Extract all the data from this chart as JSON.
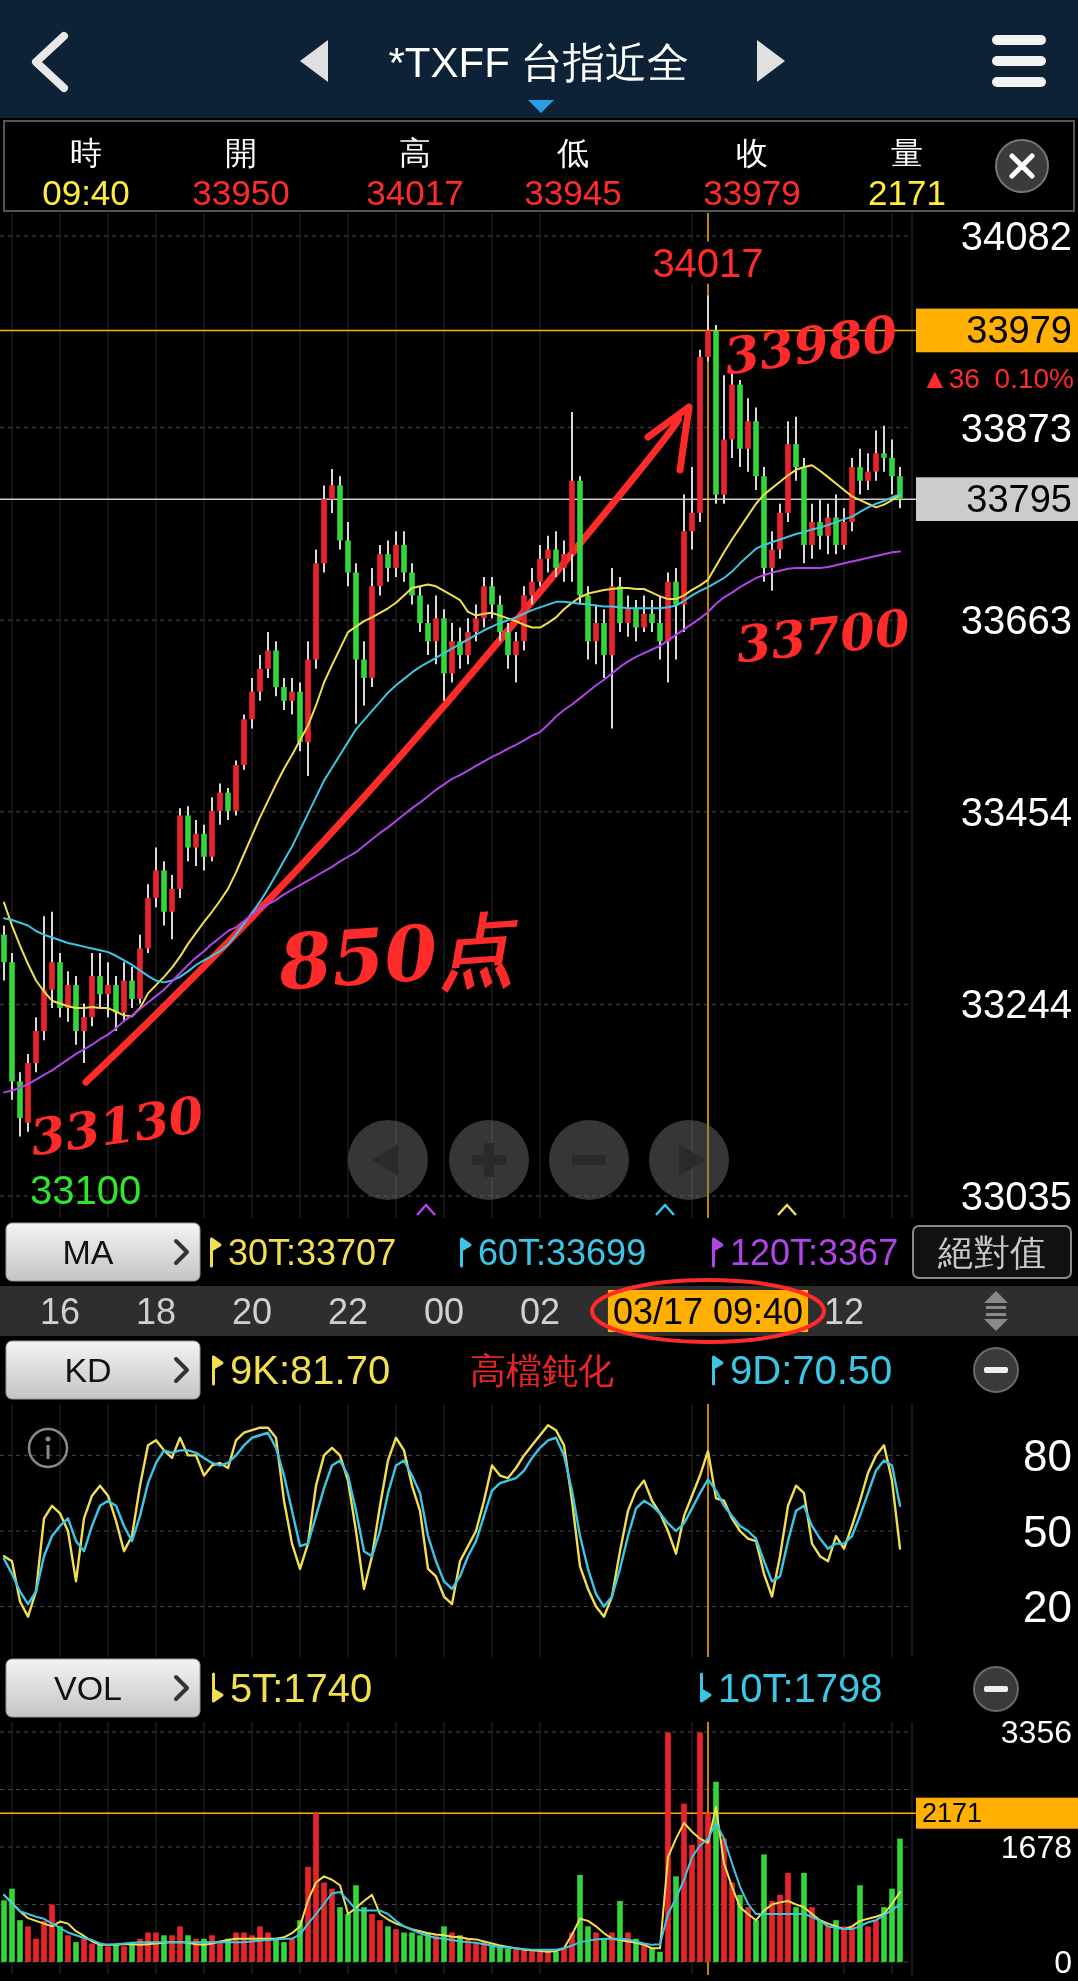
{
  "chart_data": [
    {
      "type": "other",
      "title": "*TXFF 台指近全",
      "annotations": [
        "時",
        "開",
        "高",
        "低",
        "收",
        "量",
        "09:40",
        "33950",
        "34017",
        "33945",
        "33979",
        "2171"
      ]
    },
    {
      "type": "candlestick",
      "categories": [
        null,
        null,
        null,
        null,
        null,
        null,
        null,
        "16",
        null,
        null,
        null,
        null,
        null,
        null,
        null,
        null,
        null,
        null,
        null,
        "18",
        null,
        null,
        null,
        null,
        null,
        null,
        null,
        null,
        null,
        null,
        null,
        "20",
        null,
        null,
        null,
        null,
        null,
        null,
        null,
        null,
        null,
        null,
        null,
        "22",
        null,
        null,
        null,
        null,
        null,
        null,
        null,
        null,
        null,
        null,
        null,
        "00",
        null,
        null,
        null,
        null,
        null,
        null,
        null,
        null,
        null,
        null,
        null,
        "02",
        null,
        null,
        null,
        null,
        null,
        null,
        null,
        null,
        null,
        null,
        null,
        null,
        null,
        null,
        null,
        null,
        null,
        null,
        null,
        null,
        "03/17 09:40",
        null,
        null,
        null,
        null,
        null,
        null,
        null,
        null,
        null,
        null,
        null,
        null,
        null,
        null,
        null,
        null,
        "12",
        null,
        null,
        null,
        null,
        null,
        null,
        null
      ],
      "ohlc": [
        [
          33320,
          33330,
          33270,
          33290
        ],
        [
          33290,
          33300,
          33140,
          33160
        ],
        [
          33160,
          33170,
          33100,
          33120
        ],
        [
          33115,
          33190,
          33105,
          33180
        ],
        [
          33180,
          33230,
          33170,
          33215
        ],
        [
          33215,
          33340,
          33205,
          33260
        ],
        [
          33260,
          33345,
          33240,
          33290
        ],
        [
          33290,
          33300,
          33230,
          33240
        ],
        [
          33240,
          33280,
          33225,
          33265
        ],
        [
          33265,
          33275,
          33200,
          33215
        ],
        [
          33215,
          33245,
          33180,
          33230
        ],
        [
          33230,
          33300,
          33220,
          33275
        ],
        [
          33275,
          33300,
          33240,
          33255
        ],
        [
          33255,
          33290,
          33230,
          33265
        ],
        [
          33265,
          33275,
          33215,
          33235
        ],
        [
          33235,
          33290,
          33225,
          33270
        ],
        [
          33270,
          33285,
          33240,
          33250
        ],
        [
          33250,
          33320,
          33245,
          33305
        ],
        [
          33305,
          33375,
          33300,
          33360
        ],
        [
          33360,
          33415,
          33350,
          33390
        ],
        [
          33390,
          33400,
          33330,
          33345
        ],
        [
          33345,
          33385,
          33315,
          33370
        ],
        [
          33370,
          33458,
          33360,
          33450
        ],
        [
          33450,
          33460,
          33400,
          33415
        ],
        [
          33415,
          33445,
          33395,
          33430
        ],
        [
          33430,
          33440,
          33390,
          33405
        ],
        [
          33405,
          33470,
          33400,
          33455
        ],
        [
          33455,
          33485,
          33440,
          33475
        ],
        [
          33475,
          33480,
          33445,
          33455
        ],
        [
          33455,
          33510,
          33450,
          33505
        ],
        [
          33505,
          33560,
          33500,
          33555
        ],
        [
          33555,
          33600,
          33545,
          33585
        ],
        [
          33585,
          33625,
          33575,
          33610
        ],
        [
          33610,
          33650,
          33600,
          33630
        ],
        [
          33630,
          33640,
          33580,
          33590
        ],
        [
          33590,
          33600,
          33565,
          33575
        ],
        [
          33575,
          33600,
          33560,
          33585
        ],
        [
          33585,
          33595,
          33520,
          33530
        ],
        [
          33530,
          33640,
          33493,
          33620
        ],
        [
          33620,
          33740,
          33610,
          33725
        ],
        [
          33725,
          33810,
          33715,
          33795
        ],
        [
          33795,
          33828,
          33780,
          33810
        ],
        [
          33810,
          33820,
          33740,
          33750
        ],
        [
          33750,
          33770,
          33700,
          33715
        ],
        [
          33715,
          33725,
          33550,
          33620
        ],
        [
          33620,
          33640,
          33570,
          33600
        ],
        [
          33600,
          33720,
          33590,
          33700
        ],
        [
          33700,
          33745,
          33690,
          33735
        ],
        [
          33735,
          33750,
          33705,
          33720
        ],
        [
          33720,
          33760,
          33710,
          33745
        ],
        [
          33745,
          33760,
          33705,
          33715
        ],
        [
          33715,
          33725,
          33680,
          33690
        ],
        [
          33690,
          33700,
          33650,
          33660
        ],
        [
          33660,
          33680,
          33625,
          33640
        ],
        [
          33640,
          33690,
          33615,
          33665
        ],
        [
          33665,
          33675,
          33575,
          33605
        ],
        [
          33605,
          33660,
          33595,
          33640
        ],
        [
          33640,
          33655,
          33610,
          33625
        ],
        [
          33625,
          33665,
          33615,
          33650
        ],
        [
          33650,
          33680,
          33640,
          33665
        ],
        [
          33665,
          33710,
          33655,
          33700
        ],
        [
          33700,
          33710,
          33665,
          33680
        ],
        [
          33680,
          33690,
          33640,
          33650
        ],
        [
          33650,
          33660,
          33610,
          33625
        ],
        [
          33625,
          33650,
          33595,
          33640
        ],
        [
          33640,
          33700,
          33630,
          33690
        ],
        [
          33690,
          33720,
          33680,
          33705
        ],
        [
          33705,
          33745,
          33700,
          33730
        ],
        [
          33730,
          33755,
          33715,
          33740
        ],
        [
          33740,
          33760,
          33710,
          33720
        ],
        [
          33720,
          33750,
          33705,
          33735
        ],
        [
          33735,
          33890,
          33705,
          33815
        ],
        [
          33815,
          33820,
          33680,
          33690
        ],
        [
          33690,
          33700,
          33620,
          33640
        ],
        [
          33640,
          33680,
          33615,
          33660
        ],
        [
          33660,
          33675,
          33600,
          33625
        ],
        [
          33625,
          33720,
          33545,
          33700
        ],
        [
          33700,
          33710,
          33650,
          33660
        ],
        [
          33660,
          33690,
          33645,
          33675
        ],
        [
          33675,
          33685,
          33640,
          33655
        ],
        [
          33655,
          33690,
          33650,
          33670
        ],
        [
          33670,
          33685,
          33650,
          33660
        ],
        [
          33660,
          33690,
          33620,
          33640
        ],
        [
          33640,
          33715,
          33595,
          33705
        ],
        [
          33705,
          33720,
          33620,
          33680
        ],
        [
          33680,
          33800,
          33650,
          33760
        ],
        [
          33760,
          33830,
          33740,
          33780
        ],
        [
          33780,
          33958,
          33770,
          33950
        ],
        [
          33950,
          34017,
          33945,
          33979
        ],
        [
          33979,
          33985,
          33790,
          33800
        ],
        [
          33800,
          33930,
          33790,
          33860
        ],
        [
          33860,
          33935,
          33840,
          33920
        ],
        [
          33920,
          33925,
          33830,
          33850
        ],
        [
          33850,
          33905,
          33825,
          33880
        ],
        [
          33880,
          33895,
          33805,
          33820
        ],
        [
          33820,
          33830,
          33705,
          33720
        ],
        [
          33720,
          33760,
          33695,
          33740
        ],
        [
          33740,
          33790,
          33730,
          33780
        ],
        [
          33780,
          33880,
          33770,
          33855
        ],
        [
          33855,
          33885,
          33815,
          33830
        ],
        [
          33830,
          33840,
          33725,
          33745
        ],
        [
          33745,
          33790,
          33730,
          33770
        ],
        [
          33770,
          33795,
          33740,
          33755
        ],
        [
          33755,
          33790,
          33735,
          33775
        ],
        [
          33775,
          33800,
          33735,
          33745
        ],
        [
          33745,
          33785,
          33740,
          33770
        ],
        [
          33770,
          33840,
          33760,
          33830
        ],
        [
          33830,
          33850,
          33800,
          33815
        ],
        [
          33815,
          33845,
          33805,
          33825
        ],
        [
          33825,
          33870,
          33815,
          33845
        ],
        [
          33845,
          33875,
          33825,
          33840
        ],
        [
          33840,
          33860,
          33800,
          33820
        ],
        [
          33820,
          33830,
          33785,
          33795
        ]
      ],
      "colors": [
        "#33d63a",
        "#33d63a",
        "#33d63a",
        "#e8242a",
        "#e8242a",
        "#e8242a",
        "#e8242a",
        "#33d63a",
        "#e8242a",
        "#33d63a",
        "#e8242a",
        "#e8242a",
        "#33d63a",
        "#e8242a",
        "#33d63a",
        "#e8242a",
        "#33d63a",
        "#e8242a",
        "#e8242a",
        "#e8242a",
        "#33d63a",
        "#e8242a",
        "#e8242a",
        "#33d63a",
        "#e8242a",
        "#33d63a",
        "#e8242a",
        "#e8242a",
        "#33d63a",
        "#e8242a",
        "#e8242a",
        "#e8242a",
        "#e8242a",
        "#e8242a",
        "#33d63a",
        "#33d63a",
        "#e8242a",
        "#33d63a",
        "#e8242a",
        "#e8242a",
        "#e8242a",
        "#e8242a",
        "#33d63a",
        "#33d63a",
        "#33d63a",
        "#33d63a",
        "#e8242a",
        "#e8242a",
        "#33d63a",
        "#e8242a",
        "#33d63a",
        "#33d63a",
        "#33d63a",
        "#33d63a",
        "#e8242a",
        "#33d63a",
        "#e8242a",
        "#33d63a",
        "#e8242a",
        "#e8242a",
        "#e8242a",
        "#33d63a",
        "#33d63a",
        "#33d63a",
        "#e8242a",
        "#e8242a",
        "#e8242a",
        "#e8242a",
        "#e8242a",
        "#33d63a",
        "#e8242a",
        "#e8242a",
        "#33d63a",
        "#33d63a",
        "#e8242a",
        "#33d63a",
        "#e8242a",
        "#33d63a",
        "#e8242a",
        "#33d63a",
        "#e8242a",
        "#33d63a",
        "#33d63a",
        "#e8242a",
        "#33d63a",
        "#e8242a",
        "#e8242a",
        "#e8242a",
        "#e8242a",
        "#33d63a",
        "#e8242a",
        "#e8242a",
        "#33d63a",
        "#e8242a",
        "#33d63a",
        "#33d63a",
        "#e8242a",
        "#e8242a",
        "#e8242a",
        "#33d63a",
        "#33d63a",
        "#e8242a",
        "#33d63a",
        "#e8242a",
        "#33d63a",
        "#e8242a",
        "#e8242a",
        "#33d63a",
        "#e8242a",
        "#e8242a",
        "#33d63a",
        "#33d63a",
        "#33d63a"
      ],
      "series": [
        {
          "type": "line",
          "name": "30T:33707",
          "color": "#f2df4f",
          "values": [
            33355,
            33330,
            33308,
            33288,
            33270,
            33258,
            33248,
            33245,
            33242,
            33240,
            33240,
            33241,
            33240,
            33240,
            33236,
            33232,
            33231,
            33240,
            33256,
            33265,
            33274,
            33284,
            33296,
            33310,
            33322,
            33334,
            33345,
            33357,
            33370,
            33388,
            33408,
            33428,
            33448,
            33466,
            33484,
            33501,
            33516,
            33532,
            33548,
            33570,
            33595,
            33614,
            33632,
            33650,
            33656,
            33662,
            33666,
            33671,
            33676,
            33682,
            33690,
            33698,
            33700,
            33702,
            33700,
            33695,
            33690,
            33685,
            33672,
            33668,
            33670,
            33671,
            33668,
            33665,
            33662,
            33658,
            33655,
            33655,
            33660,
            33666,
            33675,
            33682,
            33688,
            33692,
            33694,
            33696,
            33697,
            33698,
            33698,
            33697,
            33697,
            33693,
            33689,
            33686,
            33686,
            33690,
            33696,
            33701,
            33707,
            33722,
            33737,
            33751,
            33764,
            33777,
            33790,
            33800,
            33807,
            33814,
            33821,
            33827,
            33830,
            33832,
            33826,
            33819,
            33812,
            33805,
            33798,
            33794,
            33790,
            33786,
            33789,
            33794,
            33800
          ]
        },
        {
          "type": "line",
          "name": "60T:33699",
          "color": "#3cc6e6",
          "values": [
            33338,
            33336,
            33333,
            33330,
            33324,
            33320,
            33317,
            33314,
            33311,
            33309,
            33307,
            33305,
            33303,
            33301,
            33297,
            33292,
            33287,
            33281,
            33275,
            33270,
            33268,
            33270,
            33274,
            33280,
            33287,
            33292,
            33297,
            33302,
            33309,
            33320,
            33332,
            33344,
            33356,
            33370,
            33385,
            33401,
            33416,
            33434,
            33452,
            33470,
            33488,
            33502,
            33516,
            33530,
            33544,
            33554,
            33564,
            33574,
            33584,
            33592,
            33599,
            33606,
            33612,
            33617,
            33622,
            33627,
            33632,
            33637,
            33642,
            33647,
            33652,
            33656,
            33660,
            33663,
            33666,
            33670,
            33674,
            33677,
            33680,
            33683,
            33683,
            33682,
            33681,
            33680,
            33679,
            33678,
            33678,
            33677,
            33676,
            33676,
            33676,
            33676,
            33676,
            33677,
            33679,
            33684,
            33690,
            33695,
            33699,
            33704,
            33709,
            33716,
            33725,
            33733,
            33741,
            33745,
            33748,
            33751,
            33754,
            33757,
            33759,
            33762,
            33764,
            33767,
            33770,
            33773,
            33776,
            33781,
            33786,
            33790,
            33793,
            33797,
            33800
          ]
        },
        {
          "type": "line",
          "name": "120T:3367",
          "color": "#b044e6",
          "values": [
            33148,
            33150,
            33153,
            33157,
            33162,
            33167,
            33172,
            33178,
            33184,
            33190,
            33195,
            33200,
            33206,
            33211,
            33218,
            33226,
            33232,
            33239,
            33246,
            33253,
            33260,
            33269,
            33278,
            33287,
            33295,
            33302,
            33310,
            33317,
            33324,
            33328,
            33335,
            33342,
            33348,
            33353,
            33358,
            33364,
            33369,
            33374,
            33379,
            33384,
            33389,
            33394,
            33400,
            33405,
            33410,
            33417,
            33424,
            33431,
            33437,
            33444,
            33451,
            33458,
            33464,
            33471,
            33478,
            33484,
            33490,
            33494,
            33499,
            33504,
            33509,
            33514,
            33518,
            33523,
            33527,
            33532,
            33537,
            33541,
            33549,
            33558,
            33565,
            33571,
            33578,
            33585,
            33592,
            33598,
            33605,
            33612,
            33618,
            33623,
            33627,
            33631,
            33635,
            33641,
            33647,
            33653,
            33659,
            33665,
            33672,
            33681,
            33688,
            33693,
            33699,
            33704,
            33709,
            33712,
            33715,
            33717,
            33719,
            33720,
            33720,
            33720,
            33720,
            33721,
            33723,
            33725,
            33727,
            33729,
            33731,
            33733,
            33735,
            33737,
            33738
          ]
        }
      ],
      "ylim": [
        33035,
        34082
      ],
      "yticks": [
        33035,
        33244,
        33454,
        33663,
        33873,
        34082
      ],
      "grid": true,
      "legend": "bottom",
      "legend_title": "MA",
      "ref_lines": [
        {
          "axis": "x",
          "value": "03/17 09:40",
          "color": "#ffb000"
        },
        {
          "axis": "y",
          "value": 33979,
          "label": "33979",
          "color": "#ffb000"
        },
        {
          "axis": "y",
          "value": 33795,
          "label": "33795",
          "color": "#cccccc"
        }
      ],
      "annotations": [
        {
          "text": "34017",
          "x": "03/17 09:40",
          "y": 34017
        },
        "33100",
        "▲36",
        "0.10%",
        "絕對值",
        "33980",
        "33700",
        "33130",
        "850点"
      ]
    },
    {
      "type": "line",
      "categories": [
        null,
        null,
        null,
        null,
        null,
        null,
        null,
        "16",
        null,
        null,
        null,
        null,
        null,
        null,
        null,
        null,
        null,
        null,
        null,
        "18",
        null,
        null,
        null,
        null,
        null,
        null,
        null,
        null,
        null,
        null,
        null,
        "20",
        null,
        null,
        null,
        null,
        null,
        null,
        null,
        null,
        null,
        null,
        null,
        "22",
        null,
        null,
        null,
        null,
        null,
        null,
        null,
        null,
        null,
        null,
        null,
        "00",
        null,
        null,
        null,
        null,
        null,
        null,
        null,
        null,
        null,
        null,
        null,
        "02",
        null,
        null,
        null,
        null,
        null,
        null,
        null,
        null,
        null,
        null,
        null,
        null,
        null,
        null,
        null,
        null,
        null,
        null,
        null,
        null,
        "03/17 09:40",
        null,
        null,
        null,
        null,
        null,
        null,
        null,
        null,
        null,
        null,
        null,
        null,
        null,
        null,
        null,
        null,
        "12",
        null,
        null,
        null,
        null,
        null,
        null,
        null
      ],
      "series": [
        {
          "name": "9K:81.70",
          "color": "#f2df4f",
          "values": [
            40,
            38,
            22,
            16,
            26,
            55,
            60,
            57,
            50,
            30,
            55,
            64,
            68,
            64,
            54,
            42,
            48,
            68,
            84,
            86,
            82,
            79,
            87,
            80,
            80,
            72,
            76,
            77,
            75,
            86,
            89,
            90,
            91,
            91,
            87,
            62,
            45,
            35,
            45,
            68,
            80,
            83,
            80,
            70,
            50,
            27,
            40,
            60,
            78,
            87,
            82,
            68,
            58,
            35,
            32,
            24,
            21,
            38,
            44,
            50,
            62,
            76,
            72,
            71,
            75,
            80,
            84,
            88,
            92,
            90,
            84,
            62,
            36,
            27,
            20,
            16,
            24,
            42,
            58,
            66,
            70,
            62,
            57,
            50,
            41,
            56,
            64,
            72,
            81.7,
            63,
            62,
            55,
            50,
            47,
            46,
            33,
            24,
            40,
            60,
            68,
            65,
            45,
            40,
            38,
            48,
            43,
            52,
            62,
            73,
            80,
            84,
            70,
            43
          ]
        },
        {
          "name": "9D:70.50",
          "color": "#3cc6e6",
          "values": [
            39,
            33,
            26,
            21,
            26,
            40,
            48,
            52,
            55,
            46,
            42,
            52,
            60,
            62,
            60,
            52,
            46,
            56,
            69,
            77,
            82,
            81,
            82,
            82,
            81,
            79,
            77,
            76,
            77,
            80,
            84,
            87,
            88,
            89,
            83,
            72,
            58,
            44,
            45,
            56,
            67,
            76,
            78,
            72,
            58,
            42,
            40,
            50,
            65,
            76,
            78,
            72,
            65,
            48,
            38,
            30,
            27,
            32,
            40,
            46,
            56,
            66,
            69,
            70,
            71,
            74,
            79,
            83,
            86,
            87,
            80,
            66,
            48,
            35,
            25,
            20,
            24,
            35,
            48,
            59,
            62,
            60,
            57,
            53,
            50,
            53,
            59,
            65,
            70.5,
            66,
            60,
            56,
            52,
            50,
            47,
            38,
            30,
            32,
            46,
            58,
            60,
            52,
            47,
            43,
            45,
            45,
            48,
            56,
            65,
            74,
            78,
            76,
            60
          ]
        }
      ],
      "ylim": [
        0,
        100
      ],
      "yticks": [
        20,
        50,
        80
      ],
      "grid": true,
      "tick_labels": "y",
      "legend": "top",
      "legend_title": "KD",
      "ref_lines": [
        {
          "axis": "x",
          "value": "03/17 09:40",
          "color": "#ffb000"
        }
      ],
      "annotations": [
        "高檔鈍化"
      ]
    },
    {
      "type": "bar",
      "categories": [
        null,
        null,
        null,
        null,
        null,
        null,
        null,
        "16",
        null,
        null,
        null,
        null,
        null,
        null,
        null,
        null,
        null,
        null,
        null,
        "18",
        null,
        null,
        null,
        null,
        null,
        null,
        null,
        null,
        null,
        null,
        null,
        "20",
        null,
        null,
        null,
        null,
        null,
        null,
        null,
        null,
        null,
        null,
        null,
        "22",
        null,
        null,
        null,
        null,
        null,
        null,
        null,
        null,
        null,
        null,
        null,
        "00",
        null,
        null,
        null,
        null,
        null,
        null,
        null,
        null,
        null,
        null,
        null,
        "02",
        null,
        null,
        null,
        null,
        null,
        null,
        null,
        null,
        null,
        null,
        null,
        null,
        null,
        null,
        null,
        null,
        null,
        null,
        null,
        null,
        "03/17 09:40",
        null,
        null,
        null,
        null,
        null,
        null,
        null,
        null,
        null,
        null,
        null,
        null,
        null,
        null,
        null,
        null,
        "12",
        null,
        null,
        null,
        null,
        null,
        null,
        null
      ],
      "series": [
        {
          "values": [
            900,
            1070,
            610,
            520,
            340,
            600,
            840,
            520,
            390,
            290,
            340,
            270,
            250,
            230,
            250,
            230,
            290,
            340,
            430,
            430,
            390,
            390,
            520,
            390,
            340,
            340,
            390,
            290,
            340,
            430,
            430,
            390,
            520,
            430,
            340,
            290,
            340,
            610,
            1390,
            2170,
            1160,
            1070,
            800,
            700,
            1120,
            800,
            700,
            610,
            520,
            480,
            430,
            430,
            390,
            430,
            390,
            520,
            430,
            390,
            340,
            290,
            290,
            250,
            250,
            200,
            200,
            170,
            170,
            150,
            150,
            150,
            200,
            430,
            1270,
            520,
            430,
            340,
            430,
            890,
            430,
            340,
            250,
            200,
            150,
            3350,
            1250,
            2310,
            1710,
            3350,
            2171,
            2630,
            1800,
            1160,
            980,
            800,
            610,
            1570,
            890,
            980,
            1300,
            800,
            1300,
            800,
            610,
            520,
            610,
            520,
            520,
            1120,
            520,
            610,
            800,
            1070,
            1800
          ],
          "colors": [
            "#33d63a",
            "#33d63a",
            "#33d63a",
            "#e8242a",
            "#e8242a",
            "#e8242a",
            "#e8242a",
            "#33d63a",
            "#e8242a",
            "#33d63a",
            "#e8242a",
            "#e8242a",
            "#33d63a",
            "#e8242a",
            "#33d63a",
            "#e8242a",
            "#33d63a",
            "#e8242a",
            "#e8242a",
            "#e8242a",
            "#33d63a",
            "#e8242a",
            "#e8242a",
            "#33d63a",
            "#e8242a",
            "#33d63a",
            "#e8242a",
            "#e8242a",
            "#33d63a",
            "#e8242a",
            "#e8242a",
            "#e8242a",
            "#e8242a",
            "#e8242a",
            "#33d63a",
            "#33d63a",
            "#e8242a",
            "#33d63a",
            "#e8242a",
            "#e8242a",
            "#e8242a",
            "#e8242a",
            "#33d63a",
            "#33d63a",
            "#33d63a",
            "#33d63a",
            "#e8242a",
            "#e8242a",
            "#33d63a",
            "#e8242a",
            "#33d63a",
            "#33d63a",
            "#33d63a",
            "#33d63a",
            "#e8242a",
            "#33d63a",
            "#e8242a",
            "#33d63a",
            "#e8242a",
            "#e8242a",
            "#e8242a",
            "#33d63a",
            "#33d63a",
            "#33d63a",
            "#e8242a",
            "#e8242a",
            "#e8242a",
            "#e8242a",
            "#e8242a",
            "#33d63a",
            "#e8242a",
            "#e8242a",
            "#33d63a",
            "#33d63a",
            "#e8242a",
            "#33d63a",
            "#e8242a",
            "#33d63a",
            "#e8242a",
            "#33d63a",
            "#e8242a",
            "#33d63a",
            "#33d63a",
            "#e8242a",
            "#33d63a",
            "#e8242a",
            "#e8242a",
            "#e8242a",
            "#e8242a",
            "#33d63a",
            "#e8242a",
            "#e8242a",
            "#33d63a",
            "#e8242a",
            "#33d63a",
            "#33d63a",
            "#e8242a",
            "#e8242a",
            "#e8242a",
            "#33d63a",
            "#33d63a",
            "#e8242a",
            "#33d63a",
            "#e8242a",
            "#33d63a",
            "#e8242a",
            "#e8242a",
            "#33d63a",
            "#e8242a",
            "#e8242a",
            "#33d63a",
            "#33d63a",
            "#33d63a"
          ]
        },
        {
          "type": "line",
          "name": "5T:1740",
          "color": "#f2df4f",
          "values": [
            980,
            860,
            740,
            640,
            600,
            560,
            520,
            590,
            560,
            450,
            380,
            300,
            250,
            250,
            250,
            260,
            260,
            250,
            260,
            270,
            280,
            290,
            290,
            280,
            260,
            250,
            270,
            300,
            320,
            340,
            340,
            340,
            340,
            340,
            340,
            360,
            420,
            520,
            900,
            1160,
            1250,
            1200,
            1120,
            700,
            790,
            890,
            980,
            700,
            620,
            560,
            520,
            480,
            450,
            420,
            400,
            390,
            370,
            360,
            340,
            330,
            300,
            270,
            240,
            220,
            200,
            180,
            170,
            160,
            150,
            160,
            200,
            400,
            630,
            600,
            520,
            420,
            340,
            320,
            300,
            280,
            250,
            200,
            200,
            1530,
            1800,
            2030,
            1900,
            1800,
            1740,
            2260,
            1440,
            1100,
            800,
            700,
            610,
            750,
            840,
            870,
            890,
            840,
            800,
            700,
            610,
            560,
            520,
            480,
            520,
            600,
            630,
            660,
            700,
            850,
            1020
          ]
        },
        {
          "type": "line",
          "name": "10T:1798",
          "color": "#3cc6e6",
          "values": [
            980,
            850,
            740,
            700,
            660,
            630,
            560,
            500,
            430,
            390,
            350,
            320,
            270,
            250,
            260,
            270,
            280,
            290,
            290,
            290,
            290,
            290,
            290,
            290,
            290,
            290,
            290,
            290,
            290,
            290,
            290,
            300,
            310,
            320,
            330,
            340,
            340,
            400,
            560,
            700,
            850,
            1000,
            1020,
            900,
            760,
            750,
            750,
            750,
            700,
            600,
            520,
            470,
            420,
            380,
            350,
            340,
            320,
            300,
            290,
            280,
            260,
            240,
            220,
            210,
            200,
            190,
            180,
            180,
            180,
            180,
            200,
            240,
            290,
            310,
            330,
            340,
            340,
            340,
            330,
            300,
            270,
            250,
            260,
            700,
            930,
            1200,
            1530,
            1700,
            1798,
            2030,
            1800,
            1440,
            1100,
            850,
            700,
            700,
            700,
            700,
            700,
            700,
            700,
            660,
            600,
            520,
            500,
            480,
            480,
            520,
            580,
            610,
            680,
            760,
            840
          ]
        }
      ],
      "ylim": [
        0,
        3356
      ],
      "yticks": [
        0,
        {
          "value": 839,
          "label": null
        },
        1678,
        {
          "value": 2517,
          "label": null
        },
        3356
      ],
      "grid": true,
      "tick_labels": "y",
      "legend": "top",
      "legend_title": "VOL",
      "ref_lines": [
        {
          "axis": "x",
          "value": "03/17 09:40",
          "color": "#ffb000"
        },
        {
          "axis": "y",
          "value": 2171,
          "label": "2171",
          "color": "#ffb000"
        }
      ]
    }
  ]
}
